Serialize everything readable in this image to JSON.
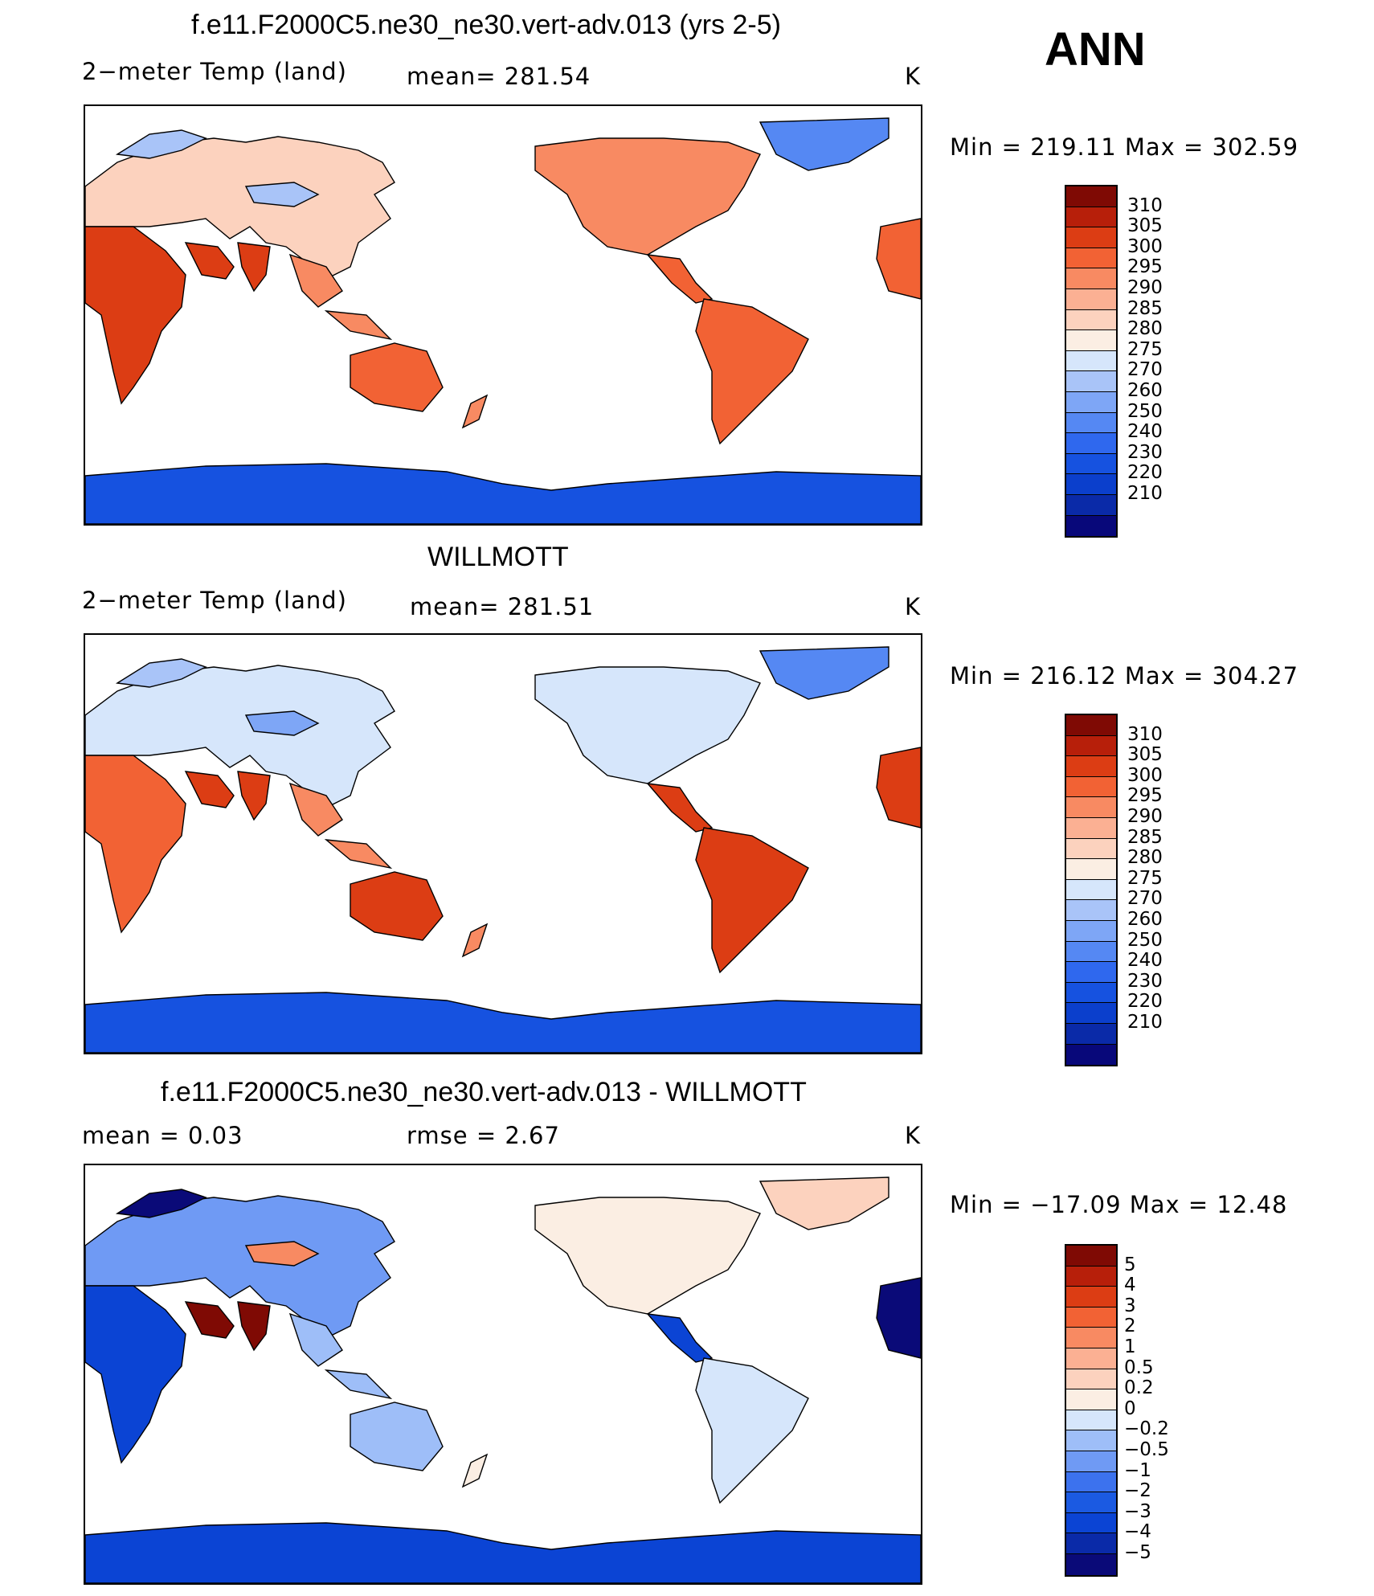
{
  "ann_label": "ANN",
  "palette": {
    "temp": [
      "#08087a",
      "#0a2aa8",
      "#0b3fcc",
      "#1652e0",
      "#2f68ee",
      "#5588f3",
      "#7ea6f6",
      "#a9c4f8",
      "#d6e6fb",
      "#fbeee3",
      "#fcd2be",
      "#fbb093",
      "#f88a62",
      "#f26234",
      "#dc3d14",
      "#b71f0a",
      "#7f0a04"
    ],
    "diff": [
      "#0a0a78",
      "#0a2aa8",
      "#0b44d4",
      "#1b5ae2",
      "#3c72ee",
      "#6f9af4",
      "#9ebef8",
      "#d6e6fb",
      "#fbeee3",
      "#fcd2be",
      "#fbb093",
      "#f88a62",
      "#f26234",
      "#dc3d14",
      "#b71f0a",
      "#7f0a04"
    ]
  },
  "panels": [
    {
      "title": "f.e11.F2000C5.ne30_ne30.vert-adv.013 (yrs 2-5)",
      "left_label": "2−meter Temp (land)",
      "mid_label": "mean=  281.54",
      "unit": "K",
      "minmax": "Min  =  219.11  Max  =  302.59",
      "colorbar_ticks": [
        "310",
        "305",
        "300",
        "295",
        "290",
        "285",
        "280",
        "275",
        "270",
        "260",
        "250",
        "240",
        "230",
        "220",
        "210"
      ]
    },
    {
      "title": "WILLMOTT",
      "left_label": "2−meter Temp (land)",
      "mid_label": "mean=  281.51",
      "unit": "K",
      "minmax": "Min  =  216.12  Max  =  304.27",
      "colorbar_ticks": [
        "310",
        "305",
        "300",
        "295",
        "290",
        "285",
        "280",
        "275",
        "270",
        "260",
        "250",
        "240",
        "230",
        "220",
        "210"
      ]
    },
    {
      "title": "f.e11.F2000C5.ne30_ne30.vert-adv.013 - WILLMOTT",
      "left_label": "mean  =      0.03",
      "mid_label": "rmse  =      2.67",
      "unit": "K",
      "minmax": "Min  =  −17.09  Max  =     12.48",
      "colorbar_ticks": [
        "5",
        "4",
        "3",
        "2",
        "1",
        "0.5",
        "0.2",
        "0",
        "−0.2",
        "−0.5",
        "−1",
        "−2",
        "−3",
        "−4",
        "−5"
      ]
    }
  ],
  "chart_data": {
    "type": "heatmap",
    "variable": "2-meter Temp (land)",
    "season": "ANN",
    "unit": "K",
    "panels": [
      {
        "title": "f.e11.F2000C5.ne30_ne30.vert-adv.013 (yrs 2-5)",
        "mean": 281.54,
        "min": 219.11,
        "max": 302.59,
        "contour_levels": [
          210,
          220,
          230,
          240,
          250,
          260,
          270,
          275,
          280,
          285,
          290,
          295,
          300,
          305,
          310
        ]
      },
      {
        "title": "WILLMOTT",
        "mean": 281.51,
        "min": 216.12,
        "max": 304.27,
        "contour_levels": [
          210,
          220,
          230,
          240,
          250,
          260,
          270,
          275,
          280,
          285,
          290,
          295,
          300,
          305,
          310
        ]
      },
      {
        "title": "f.e11.F2000C5.ne30_ne30.vert-adv.013 - WILLMOTT",
        "mean": 0.03,
        "rmse": 2.67,
        "min": -17.09,
        "max": 12.48,
        "contour_levels": [
          -5,
          -4,
          -3,
          -2,
          -1,
          -0.5,
          -0.2,
          0,
          0.2,
          0.5,
          1,
          2,
          3,
          4,
          5
        ]
      }
    ]
  }
}
